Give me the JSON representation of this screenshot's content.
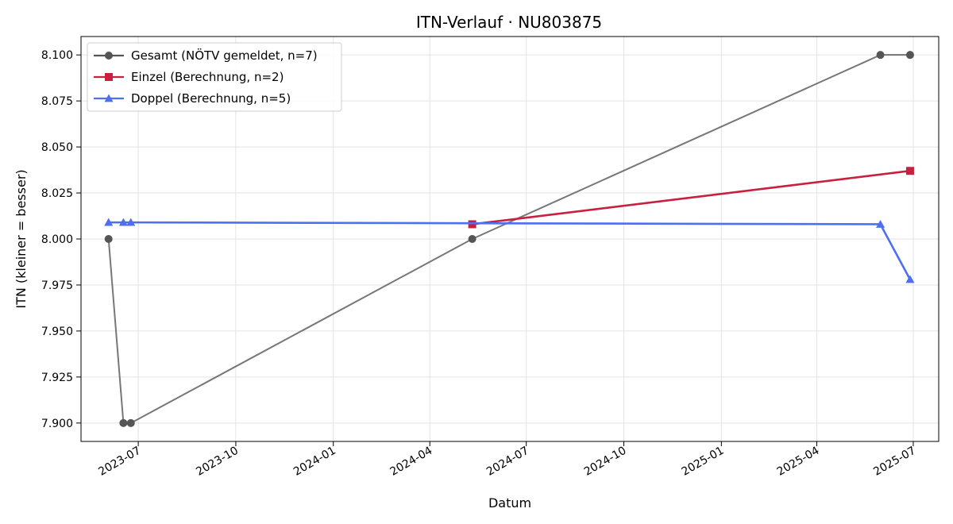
{
  "chart_data": {
    "type": "line",
    "title": "ITN-Verlauf · NU803875",
    "xlabel": "Datum",
    "ylabel": "ITN  (kleiner = besser)",
    "ylim": [
      7.89,
      8.11
    ],
    "xlim": [
      "2023-05-08",
      "2025-07-25"
    ],
    "x_ticks": [
      "2023-07-01",
      "2023-10-01",
      "2024-01-01",
      "2024-04-01",
      "2024-07-01",
      "2024-10-01",
      "2025-01-01",
      "2025-04-01",
      "2025-07-01"
    ],
    "x_tick_labels": [
      "2023-07",
      "2023-10",
      "2024-01",
      "2024-04",
      "2024-07",
      "2024-10",
      "2025-01",
      "2025-04",
      "2025-07"
    ],
    "y_ticks": [
      7.9,
      7.925,
      7.95,
      7.975,
      8.0,
      8.025,
      8.05,
      8.075,
      8.1
    ],
    "y_tick_labels": [
      "7.900",
      "7.925",
      "7.950",
      "7.975",
      "8.000",
      "8.025",
      "8.050",
      "8.075",
      "8.100"
    ],
    "grid": true,
    "legend_position": "top-left",
    "series": [
      {
        "name": "Gesamt (NÖTV gemeldet, n=7)",
        "color": "#555555",
        "marker": "circle",
        "points": [
          {
            "x": "2023-06-03",
            "y": 8.0
          },
          {
            "x": "2023-06-17",
            "y": 7.9
          },
          {
            "x": "2023-06-24",
            "y": 7.9
          },
          {
            "x": "2024-05-11",
            "y": 8.0
          },
          {
            "x": "2025-05-31",
            "y": 8.1
          },
          {
            "x": "2025-06-28",
            "y": 8.1
          }
        ]
      },
      {
        "name": "Einzel (Berechnung, n=2)",
        "color": "#c8203e",
        "marker": "square",
        "points": [
          {
            "x": "2024-05-11",
            "y": 8.008
          },
          {
            "x": "2025-06-28",
            "y": 8.037
          }
        ]
      },
      {
        "name": "Doppel (Berechnung, n=5)",
        "color": "#4e6ff0",
        "marker": "triangle",
        "points": [
          {
            "x": "2023-06-03",
            "y": 8.009
          },
          {
            "x": "2023-06-17",
            "y": 8.009
          },
          {
            "x": "2023-06-24",
            "y": 8.009
          },
          {
            "x": "2025-05-31",
            "y": 8.008
          },
          {
            "x": "2025-06-28",
            "y": 7.978
          }
        ]
      }
    ]
  }
}
